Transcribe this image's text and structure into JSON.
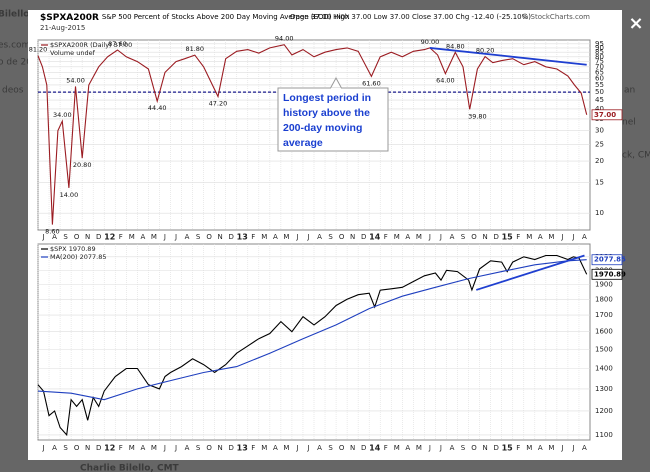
{
  "background_texts": [
    "Bilello, CMT",
    "es.com",
    "o de 20",
    "deos",
    "an",
    "nel",
    "ck, CM",
    "Charlie Bilello, CMT"
  ],
  "close_button": "×",
  "header": {
    "symbol": "$SPXA200R",
    "title": "S&P 500 Percent of Stocks Above 200 Day Moving Average (EOD)",
    "exchange": "INDX",
    "date": "21-Aug-2015",
    "quote": "Open 37.00  High 37.00  Low 37.00  Close 37.00  Chg -12.40 (-25.10%)",
    "source": "© StockCharts.com"
  },
  "callout": {
    "lines": [
      "Longest period in",
      "history above the",
      "200-day moving",
      "average"
    ]
  },
  "chart_data": [
    {
      "type": "line",
      "log_scale": true,
      "grid": true,
      "xlim": [
        0,
        50
      ],
      "ylim": [
        8,
        100
      ],
      "yticks": [
        10,
        15,
        20,
        25,
        30,
        35,
        40,
        45,
        50,
        55,
        60,
        65,
        70,
        75,
        80,
        85,
        90,
        95
      ],
      "xticks": [
        {
          "value": 0,
          "label": "J"
        },
        {
          "value": 1,
          "label": "A"
        },
        {
          "value": 2,
          "label": "S"
        },
        {
          "value": 3,
          "label": "O"
        },
        {
          "value": 4,
          "label": "N"
        },
        {
          "value": 5,
          "label": "D"
        },
        {
          "value": 6,
          "label": "12"
        },
        {
          "value": 7,
          "label": "F"
        },
        {
          "value": 8,
          "label": "M"
        },
        {
          "value": 9,
          "label": "A"
        },
        {
          "value": 10,
          "label": "M"
        },
        {
          "value": 11,
          "label": "J"
        },
        {
          "value": 12,
          "label": "J"
        },
        {
          "value": 13,
          "label": "A"
        },
        {
          "value": 14,
          "label": "S"
        },
        {
          "value": 15,
          "label": "O"
        },
        {
          "value": 16,
          "label": "N"
        },
        {
          "value": 17,
          "label": "D"
        },
        {
          "value": 18,
          "label": "13"
        },
        {
          "value": 19,
          "label": "F"
        },
        {
          "value": 20,
          "label": "M"
        },
        {
          "value": 21,
          "label": "A"
        },
        {
          "value": 22,
          "label": "M"
        },
        {
          "value": 23,
          "label": "J"
        },
        {
          "value": 24,
          "label": "J"
        },
        {
          "value": 25,
          "label": "A"
        },
        {
          "value": 26,
          "label": "S"
        },
        {
          "value": 27,
          "label": "O"
        },
        {
          "value": 28,
          "label": "N"
        },
        {
          "value": 29,
          "label": "D"
        },
        {
          "value": 30,
          "label": "14"
        },
        {
          "value": 31,
          "label": "F"
        },
        {
          "value": 32,
          "label": "M"
        },
        {
          "value": 33,
          "label": "A"
        },
        {
          "value": 34,
          "label": "M"
        },
        {
          "value": 35,
          "label": "J"
        },
        {
          "value": 36,
          "label": "J"
        },
        {
          "value": 37,
          "label": "A"
        },
        {
          "value": 38,
          "label": "S"
        },
        {
          "value": 39,
          "label": "O"
        },
        {
          "value": 40,
          "label": "N"
        },
        {
          "value": 41,
          "label": "D"
        },
        {
          "value": 42,
          "label": "15"
        },
        {
          "value": 43,
          "label": "F"
        },
        {
          "value": 44,
          "label": "M"
        },
        {
          "value": 45,
          "label": "A"
        },
        {
          "value": 46,
          "label": "M"
        },
        {
          "value": 47,
          "label": "J"
        },
        {
          "value": 48,
          "label": "J"
        },
        {
          "value": 49,
          "label": "A"
        }
      ],
      "legend_extra": "Volume undef",
      "hline": {
        "value": 50,
        "color": "#1a1a8c"
      },
      "series": [
        {
          "name": "$SPXA200R (Daily) 37.00",
          "color": "#9b1c22",
          "end_label": "37.00",
          "x": [
            0,
            0.4,
            0.8,
            1.3,
            1.8,
            2.2,
            2.8,
            3.4,
            4.0,
            4.6,
            5.5,
            6.3,
            7.2,
            8,
            9,
            10,
            10.8,
            11.5,
            12.5,
            13.3,
            14.2,
            15,
            16.3,
            17,
            18,
            19,
            20,
            21,
            22.3,
            23,
            24,
            25,
            26,
            27,
            28,
            29,
            30.2,
            31,
            32,
            33,
            34,
            35,
            35.5,
            36.2,
            36.9,
            37.8,
            38.5,
            39.1,
            39.8,
            40.5,
            41.2,
            42,
            43,
            44,
            45,
            46,
            47,
            48,
            48.6,
            49.2,
            49.7
          ],
          "values": [
            81.2,
            70,
            55,
            8.6,
            30,
            34,
            14,
            54,
            20.8,
            55,
            70,
            80,
            87.6,
            80,
            75,
            68,
            44.4,
            65,
            75,
            78,
            81.8,
            70,
            47.2,
            78,
            86,
            88,
            84,
            90,
            94,
            82,
            88,
            80,
            85,
            88,
            90,
            86,
            61.6,
            80,
            85,
            80,
            86,
            88,
            90,
            82,
            64,
            84.8,
            70,
            39.8,
            68,
            80.2,
            74,
            76,
            78,
            72,
            75,
            70,
            68,
            62,
            55,
            49.4,
            37
          ]
        }
      ],
      "trendlines": [
        {
          "color": "#1f3fd0",
          "x": [
            35.5,
            49.7
          ],
          "values": [
            90,
            72
          ]
        }
      ],
      "annotations": [
        {
          "x": 0,
          "value": 81.2,
          "label": "81.20"
        },
        {
          "x": 1.3,
          "value": 8.6,
          "label": "8.60"
        },
        {
          "x": 2.2,
          "value": 34,
          "label": "34.00"
        },
        {
          "x": 2.8,
          "value": 14,
          "label": "14.00"
        },
        {
          "x": 3.4,
          "value": 54,
          "label": "54.00"
        },
        {
          "x": 4.0,
          "value": 20.8,
          "label": "20.80"
        },
        {
          "x": 7.2,
          "value": 87.6,
          "label": "87.60"
        },
        {
          "x": 10.8,
          "value": 44.4,
          "label": "44.40"
        },
        {
          "x": 14.2,
          "value": 81.8,
          "label": "81.80"
        },
        {
          "x": 16.3,
          "value": 47.2,
          "label": "47.20"
        },
        {
          "x": 22.3,
          "value": 94,
          "label": "94.00"
        },
        {
          "x": 30.2,
          "value": 61.6,
          "label": "61.60"
        },
        {
          "x": 35.5,
          "value": 90,
          "label": "90.00"
        },
        {
          "x": 36.9,
          "value": 64,
          "label": "64.00"
        },
        {
          "x": 37.8,
          "value": 84.8,
          "label": "84.80"
        },
        {
          "x": 39.8,
          "value": 39.8,
          "label": "39.80"
        },
        {
          "x": 40.5,
          "value": 80.2,
          "label": "80.20"
        }
      ]
    },
    {
      "type": "line",
      "log_scale": true,
      "grid": true,
      "xlim": [
        0,
        50
      ],
      "ylim": [
        1080,
        2200
      ],
      "yticks": [
        1100,
        1200,
        1300,
        1400,
        1500,
        1600,
        1700,
        1800,
        1900,
        2000,
        2100
      ],
      "xticks": [
        {
          "value": 0,
          "label": "J"
        },
        {
          "value": 1,
          "label": "A"
        },
        {
          "value": 2,
          "label": "S"
        },
        {
          "value": 3,
          "label": "O"
        },
        {
          "value": 4,
          "label": "N"
        },
        {
          "value": 5,
          "label": "D"
        },
        {
          "value": 6,
          "label": "12"
        },
        {
          "value": 7,
          "label": "F"
        },
        {
          "value": 8,
          "label": "M"
        },
        {
          "value": 9,
          "label": "A"
        },
        {
          "value": 10,
          "label": "M"
        },
        {
          "value": 11,
          "label": "J"
        },
        {
          "value": 12,
          "label": "J"
        },
        {
          "value": 13,
          "label": "A"
        },
        {
          "value": 14,
          "label": "S"
        },
        {
          "value": 15,
          "label": "O"
        },
        {
          "value": 16,
          "label": "N"
        },
        {
          "value": 17,
          "label": "D"
        },
        {
          "value": 18,
          "label": "13"
        },
        {
          "value": 19,
          "label": "F"
        },
        {
          "value": 20,
          "label": "M"
        },
        {
          "value": 21,
          "label": "A"
        },
        {
          "value": 22,
          "label": "M"
        },
        {
          "value": 23,
          "label": "J"
        },
        {
          "value": 24,
          "label": "J"
        },
        {
          "value": 25,
          "label": "A"
        },
        {
          "value": 26,
          "label": "S"
        },
        {
          "value": 27,
          "label": "O"
        },
        {
          "value": 28,
          "label": "N"
        },
        {
          "value": 29,
          "label": "D"
        },
        {
          "value": 30,
          "label": "14"
        },
        {
          "value": 31,
          "label": "F"
        },
        {
          "value": 32,
          "label": "M"
        },
        {
          "value": 33,
          "label": "A"
        },
        {
          "value": 34,
          "label": "M"
        },
        {
          "value": 35,
          "label": "J"
        },
        {
          "value": 36,
          "label": "J"
        },
        {
          "value": 37,
          "label": "A"
        },
        {
          "value": 38,
          "label": "S"
        },
        {
          "value": 39,
          "label": "O"
        },
        {
          "value": 40,
          "label": "N"
        },
        {
          "value": 41,
          "label": "D"
        },
        {
          "value": 42,
          "label": "15"
        },
        {
          "value": 43,
          "label": "F"
        },
        {
          "value": 44,
          "label": "M"
        },
        {
          "value": 45,
          "label": "A"
        },
        {
          "value": 46,
          "label": "M"
        },
        {
          "value": 47,
          "label": "J"
        },
        {
          "value": 48,
          "label": "J"
        },
        {
          "value": 49,
          "label": "A"
        }
      ],
      "series": [
        {
          "name": "$SPX 1970.89",
          "color": "#000000",
          "x": [
            0,
            0.5,
            1,
            1.5,
            2,
            2.6,
            3,
            3.5,
            4,
            4.5,
            5,
            5.5,
            6,
            7,
            8,
            9,
            10,
            11,
            11.5,
            12,
            13,
            14,
            15,
            16,
            17,
            18,
            19,
            20,
            21,
            22,
            23,
            24,
            25,
            26,
            27,
            28,
            29,
            30,
            30.5,
            31,
            32,
            33,
            34,
            35,
            36,
            36.5,
            37,
            38,
            39,
            39.3,
            40,
            41,
            42,
            42.5,
            43,
            44,
            45,
            46,
            47,
            48,
            48.5,
            49,
            49.7
          ],
          "values": [
            1320,
            1290,
            1180,
            1200,
            1130,
            1100,
            1250,
            1220,
            1250,
            1160,
            1260,
            1220,
            1290,
            1360,
            1400,
            1400,
            1320,
            1300,
            1360,
            1380,
            1410,
            1450,
            1420,
            1380,
            1420,
            1480,
            1520,
            1560,
            1590,
            1660,
            1600,
            1690,
            1640,
            1690,
            1760,
            1800,
            1830,
            1840,
            1750,
            1860,
            1870,
            1880,
            1920,
            1960,
            1980,
            1930,
            2000,
            1990,
            1930,
            1862,
            2010,
            2070,
            2060,
            1990,
            2060,
            2100,
            2080,
            2110,
            2110,
            2080,
            2100,
            2090,
            1970.89
          ]
        },
        {
          "name": "MA(200) 2077.85",
          "color": "#1f3fbf",
          "x": [
            0,
            3,
            6,
            9,
            12,
            15,
            18,
            21,
            24,
            27,
            30,
            33,
            36,
            39,
            42,
            45,
            48,
            49.7
          ],
          "values": [
            1290,
            1280,
            1250,
            1300,
            1340,
            1380,
            1410,
            1480,
            1560,
            1640,
            1740,
            1820,
            1880,
            1940,
            1990,
            2040,
            2070,
            2077.85
          ]
        }
      ],
      "trendlines": [
        {
          "color": "#1f3fd0",
          "x": [
            39.7,
            49.5
          ],
          "values": [
            1862,
            2110
          ]
        }
      ]
    }
  ]
}
